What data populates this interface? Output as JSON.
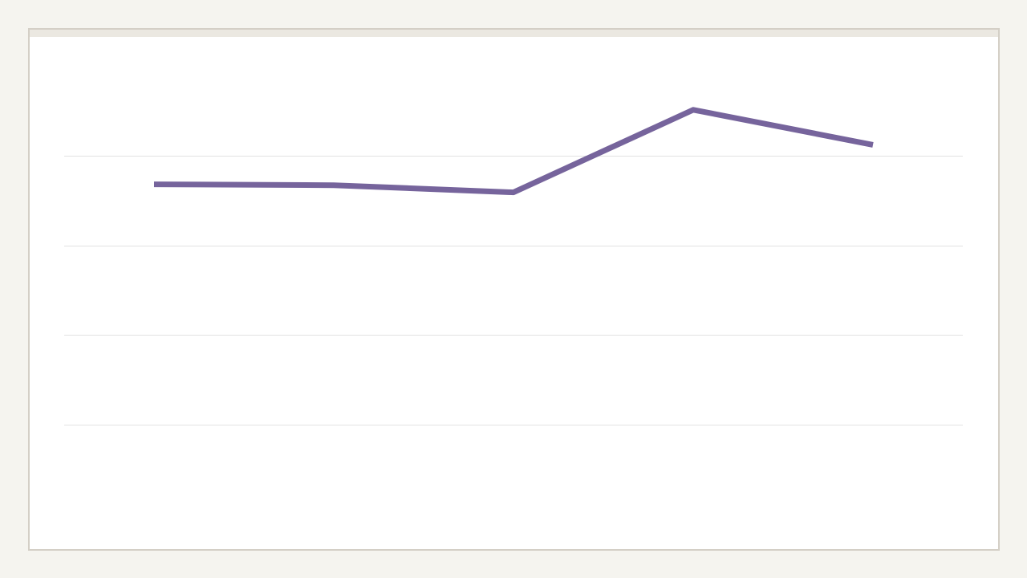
{
  "chart_data": {
    "type": "line",
    "title": "",
    "xlabel": "",
    "ylabel": "",
    "grid": true,
    "legend": "none",
    "ylim": [
      0,
      5
    ],
    "ygrid_values": [
      1,
      2,
      3,
      4
    ],
    "x": [
      1,
      2,
      3,
      4,
      5
    ],
    "series": [
      {
        "values": [
          3.68,
          3.67,
          3.59,
          4.51,
          4.12
        ],
        "color": "#76649c"
      }
    ]
  }
}
